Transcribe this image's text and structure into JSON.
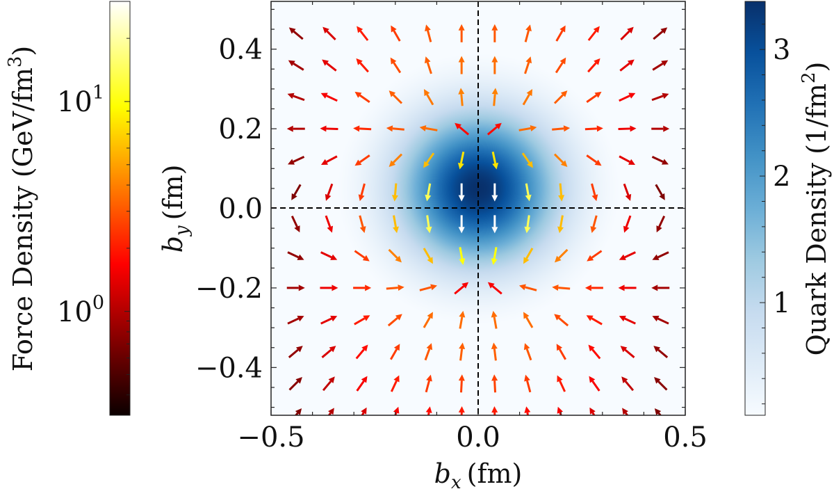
{
  "chart_data": {
    "type": "quiver-heatmap",
    "xlabel": "b",
    "xlabel_sub": "x",
    "xlabel_unit": "(fm)",
    "ylabel": "b",
    "ylabel_sub": "y",
    "ylabel_unit": "(fm)",
    "xlim": [
      -0.5,
      0.5
    ],
    "ylim": [
      -0.52,
      0.52
    ],
    "xticks": [
      {
        "v": -0.5,
        "label": "−0.5"
      },
      {
        "v": 0.0,
        "label": "0.0"
      },
      {
        "v": 0.5,
        "label": "0.5"
      }
    ],
    "yticks": [
      {
        "v": 0.4,
        "label": "0.4"
      },
      {
        "v": 0.2,
        "label": "0.2"
      },
      {
        "v": 0.0,
        "label": "0.0"
      },
      {
        "v": -0.2,
        "label": "−0.2"
      },
      {
        "v": -0.4,
        "label": "−0.4"
      }
    ],
    "reference_lines": {
      "x": 0.0,
      "y": 0.0,
      "style": "dashed",
      "color": "#000000"
    },
    "heatmap": {
      "label": "Quark Density (1/fm",
      "label_sup": "2",
      "label_end": ")",
      "colormap": "Blues",
      "range": [
        0.11,
        3.38
      ],
      "ticks": [
        {
          "v": 1,
          "label": "1"
        },
        {
          "v": 2,
          "label": "2"
        },
        {
          "v": 3,
          "label": "3"
        }
      ],
      "peak_value": 3.38,
      "peak_center": [
        0.0,
        0.05
      ],
      "width": 0.13
    },
    "quiver": {
      "label": "Force Density (GeV/fm",
      "label_sup": "3",
      "label_end": ")",
      "colormap": "hot",
      "scale": "log",
      "range": [
        0.32,
        30
      ],
      "ticks": [
        {
          "v": 1,
          "label": "10",
          "sup": "0"
        },
        {
          "v": 10,
          "label": "10",
          "sup": "1"
        }
      ],
      "x": [
        -0.52,
        -0.44,
        -0.36,
        -0.28,
        -0.2,
        -0.12,
        -0.04,
        0.04,
        0.12,
        0.2,
        0.28,
        0.36,
        0.44,
        0.52
      ],
      "y": [
        0.44,
        0.36,
        0.28,
        0.2,
        0.12,
        0.04,
        -0.04,
        -0.12,
        -0.2,
        -0.28,
        -0.36,
        -0.44,
        -0.52
      ],
      "angle_deg": [
        [
          null,
          140,
          135,
          128,
          120,
          105,
          90,
          90,
          75,
          60,
          52,
          45,
          40,
          null
        ],
        [
          null,
          148,
          142,
          132,
          123,
          108,
          90,
          90,
          72,
          57,
          48,
          38,
          32,
          null
        ],
        [
          null,
          160,
          155,
          145,
          135,
          120,
          95,
          85,
          60,
          45,
          35,
          25,
          20,
          null
        ],
        [
          null,
          180,
          178,
          177,
          175,
          170,
          140,
          40,
          10,
          5,
          3,
          2,
          0,
          null
        ],
        [
          null,
          -155,
          -152,
          -145,
          -135,
          -125,
          -102,
          -78,
          -55,
          -45,
          -35,
          -28,
          -25,
          null
        ],
        [
          null,
          -120,
          -110,
          -105,
          -95,
          -100,
          -90,
          -90,
          -80,
          -85,
          -75,
          -70,
          -60,
          null
        ],
        [
          -60,
          -65,
          -70,
          -75,
          -80,
          -82,
          -90,
          -90,
          -98,
          -100,
          -105,
          -110,
          -115,
          -120
        ],
        [
          -20,
          -25,
          -25,
          -35,
          -45,
          -60,
          -80,
          -100,
          -120,
          -135,
          -145,
          -155,
          -155,
          -160
        ],
        [
          0,
          0,
          0,
          0,
          5,
          15,
          40,
          140,
          165,
          175,
          180,
          180,
          180,
          180
        ],
        [
          20,
          25,
          25,
          30,
          40,
          60,
          80,
          100,
          120,
          140,
          150,
          155,
          155,
          160
        ],
        [
          35,
          40,
          40,
          50,
          60,
          70,
          83,
          97,
          110,
          120,
          130,
          140,
          140,
          145
        ],
        [
          40,
          45,
          50,
          55,
          65,
          75,
          87,
          93,
          105,
          115,
          125,
          130,
          135,
          140
        ],
        [
          45,
          50,
          55,
          60,
          70,
          80,
          88,
          92,
          100,
          110,
          120,
          125,
          130,
          135
        ]
      ],
      "magnitude": [
        [
          null,
          0.8,
          1.3,
          2,
          2.5,
          3,
          3,
          3,
          3,
          2.5,
          2,
          1.3,
          0.8,
          null
        ],
        [
          null,
          0.9,
          1.4,
          2,
          2.8,
          3.2,
          3.5,
          3.5,
          3.2,
          2.8,
          2,
          1.4,
          0.9,
          null
        ],
        [
          null,
          1.0,
          1.6,
          2.5,
          3.2,
          3.8,
          4,
          4,
          3.8,
          3.2,
          2.5,
          1.6,
          1.0,
          null
        ],
        [
          null,
          1.0,
          1.5,
          2.2,
          3,
          3.5,
          1.8,
          1.8,
          3.5,
          3,
          2.2,
          1.5,
          1.0,
          null
        ],
        [
          null,
          0.8,
          1.4,
          2.5,
          4,
          6,
          8,
          8,
          6,
          4,
          2.5,
          1.4,
          0.8,
          null
        ],
        [
          null,
          0.7,
          1.3,
          2.5,
          6,
          14,
          30,
          30,
          14,
          6,
          2.5,
          1.3,
          0.7,
          null
        ],
        [
          0.45,
          0.8,
          1.5,
          3,
          6,
          14,
          30,
          30,
          14,
          6,
          3,
          1.5,
          0.8,
          0.45
        ],
        [
          0.6,
          0.8,
          1.4,
          2.5,
          4,
          6,
          10,
          10,
          6,
          4,
          2.5,
          1.4,
          0.8,
          0.6
        ],
        [
          0.6,
          0.9,
          1.5,
          2.2,
          3,
          3,
          1.6,
          1.6,
          3,
          3,
          2.2,
          1.5,
          0.9,
          0.6
        ],
        [
          0.6,
          0.9,
          1.4,
          2,
          2.8,
          3.5,
          3.5,
          3.5,
          3.5,
          2.8,
          2,
          1.4,
          0.9,
          0.6
        ],
        [
          0.55,
          0.8,
          1.3,
          1.8,
          2.5,
          3,
          3.2,
          3.2,
          3,
          2.5,
          1.8,
          1.3,
          0.8,
          0.55
        ],
        [
          0.5,
          0.75,
          1.1,
          1.6,
          2,
          2.5,
          2.6,
          2.6,
          2.5,
          2,
          1.6,
          1.1,
          0.75,
          0.5
        ],
        [
          0.45,
          0.7,
          1.0,
          1.3,
          1.6,
          1.8,
          2,
          2,
          1.8,
          1.6,
          1.3,
          1.0,
          0.7,
          0.45
        ]
      ]
    }
  }
}
